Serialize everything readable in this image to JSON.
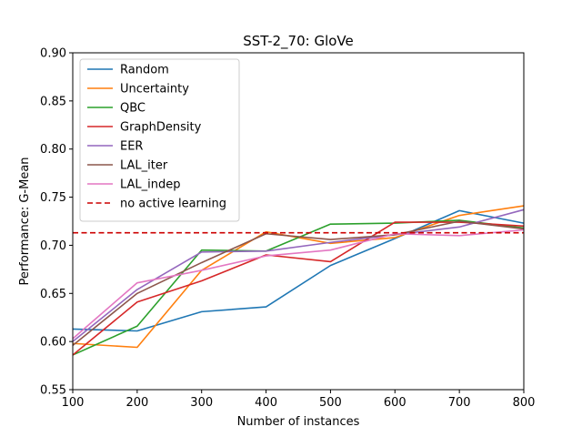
{
  "chart_data": {
    "type": "line",
    "title": "SST-2_70: GloVe",
    "xlabel": "Number of instances",
    "ylabel": "Performance: G-Mean",
    "xlim": [
      100,
      800
    ],
    "ylim": [
      0.55,
      0.9
    ],
    "x_ticks": [
      "100",
      "200",
      "300",
      "400",
      "500",
      "600",
      "700",
      "800"
    ],
    "y_ticks": [
      "0.55",
      "0.60",
      "0.65",
      "0.70",
      "0.75",
      "0.80",
      "0.85",
      "0.90"
    ],
    "x": [
      100,
      200,
      300,
      400,
      500,
      600,
      700,
      800
    ],
    "grid": false,
    "legend_position": "upper-left",
    "series": [
      {
        "name": "Random",
        "color": "#1f77b4",
        "style": "solid",
        "values": [
          0.613,
          0.611,
          0.631,
          0.636,
          0.679,
          0.707,
          0.736,
          0.723
        ]
      },
      {
        "name": "Uncertainty",
        "color": "#ff7f0e",
        "style": "solid",
        "values": [
          0.598,
          0.594,
          0.674,
          0.714,
          0.702,
          0.708,
          0.731,
          0.741
        ]
      },
      {
        "name": "QBC",
        "color": "#2ca02c",
        "style": "solid",
        "values": [
          0.586,
          0.616,
          0.695,
          0.694,
          0.722,
          0.723,
          0.726,
          0.718
        ]
      },
      {
        "name": "GraphDensity",
        "color": "#d62728",
        "style": "solid",
        "values": [
          0.586,
          0.641,
          0.663,
          0.69,
          0.683,
          0.724,
          0.724,
          0.72
        ]
      },
      {
        "name": "EER",
        "color": "#9467bd",
        "style": "solid",
        "values": [
          0.6,
          0.654,
          0.693,
          0.694,
          0.703,
          0.711,
          0.719,
          0.737
        ]
      },
      {
        "name": "LAL_iter",
        "color": "#8c564b",
        "style": "solid",
        "values": [
          0.596,
          0.65,
          0.682,
          0.712,
          0.706,
          0.711,
          0.725,
          0.717
        ]
      },
      {
        "name": "LAL_indep",
        "color": "#e377c2",
        "style": "solid",
        "values": [
          0.603,
          0.661,
          0.674,
          0.689,
          0.695,
          0.712,
          0.71,
          0.716
        ]
      },
      {
        "name": "no active learning",
        "color": "#cc0000",
        "style": "dashed",
        "values": [
          0.713,
          0.713,
          0.713,
          0.713,
          0.713,
          0.713,
          0.713,
          0.713
        ]
      }
    ]
  }
}
